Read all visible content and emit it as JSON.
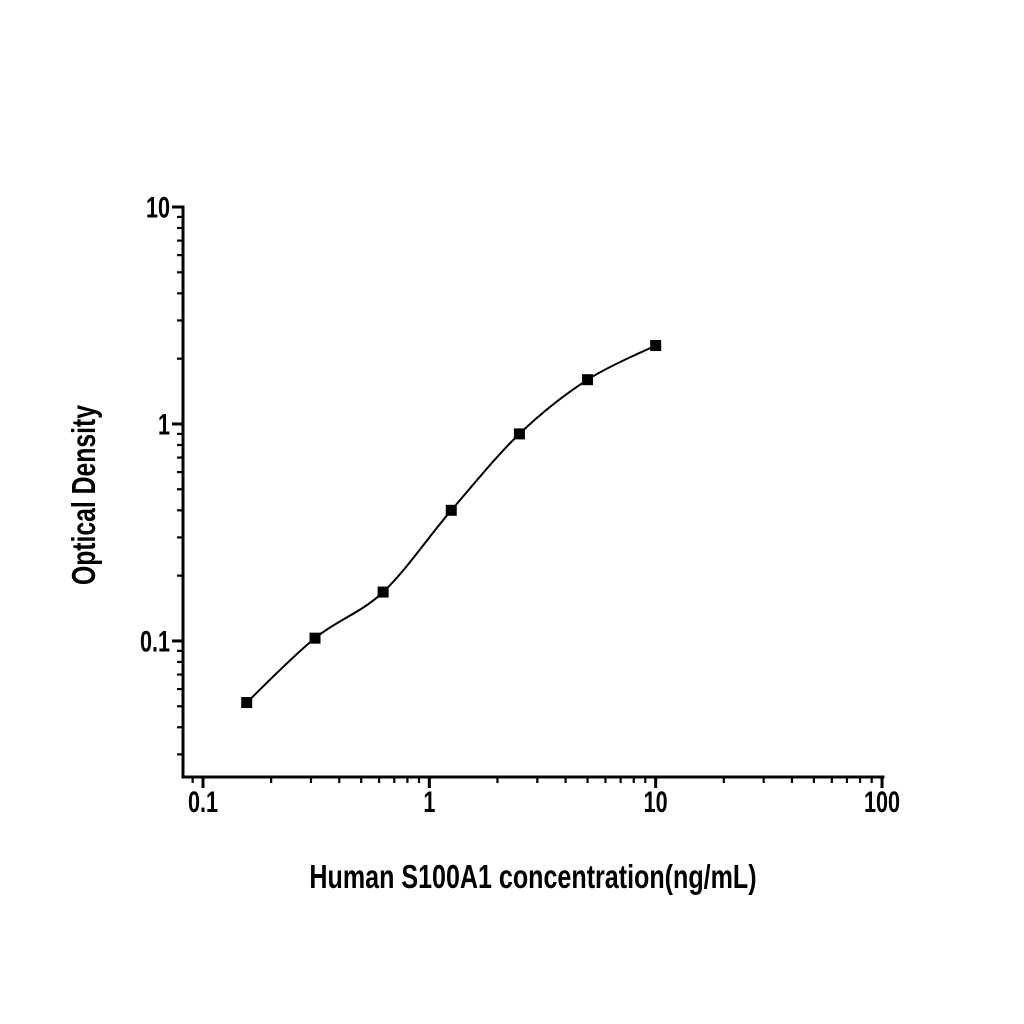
{
  "figure": {
    "background_color": "#ffffff",
    "ink_color": "#000000"
  },
  "chart_data": {
    "type": "line",
    "subtype": "scatter-points-with-smooth-fit-curve",
    "title": "",
    "xlabel": "Human S100A1 concentration(ng/mL)",
    "ylabel": "Optical Density",
    "x_scale": "log",
    "y_scale": "log",
    "series": [
      {
        "name": "standard-curve",
        "marker": "filled-square",
        "marker_color": "#000000",
        "line_color": "#000000",
        "x": [
          0.156,
          0.3125,
          0.625,
          1.25,
          2.5,
          5,
          10
        ],
        "y": [
          0.052,
          0.103,
          0.168,
          0.4,
          0.9,
          1.6,
          2.3
        ]
      }
    ],
    "x_ticks": {
      "values": [
        0.1,
        1,
        10,
        100
      ],
      "labels": [
        "0.1",
        "1",
        "10",
        "100"
      ]
    },
    "y_ticks": {
      "values": [
        10,
        1,
        0.1
      ],
      "labels": [
        "10",
        "1",
        "0.1"
      ]
    },
    "x_range": [
      0.0816,
      101
    ],
    "y_range": [
      0.0236,
      10
    ],
    "grid": false,
    "legend": "none"
  }
}
